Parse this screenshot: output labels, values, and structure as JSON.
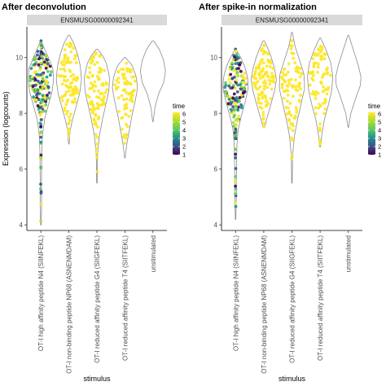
{
  "chart_data": [
    {
      "type": "violin",
      "title": "After deconvolution",
      "strip": "ENSMUSG00000092341",
      "xlabel": "stimulus",
      "ylabel": "Expression (logcounts)",
      "ylim": [
        3.8,
        11.1
      ],
      "yticks": [
        4,
        6,
        8,
        10
      ],
      "color_legend": {
        "title": "time",
        "range": [
          1,
          6.2
        ],
        "ticks": [
          1,
          2,
          3,
          4,
          5,
          6
        ]
      },
      "categories": [
        {
          "label": "OT-I high affinity peptide N4 (SIINFEKL)",
          "range": [
            4.0,
            10.6
          ],
          "profile": [
            [
              4.0,
              0.02
            ],
            [
              4.6,
              0.06
            ],
            [
              5.5,
              0.05
            ],
            [
              6.5,
              0.07
            ],
            [
              7.2,
              0.12
            ],
            [
              7.8,
              0.3
            ],
            [
              8.3,
              0.6
            ],
            [
              8.8,
              0.9
            ],
            [
              9.2,
              1.0
            ],
            [
              9.6,
              0.95
            ],
            [
              10.0,
              0.6
            ],
            [
              10.3,
              0.3
            ],
            [
              10.6,
              0.02
            ]
          ],
          "colored_fraction": 0.75,
          "n_points": 180
        },
        {
          "label": "OT-I non-binding peptide NP68 (ASNENMDAM)",
          "range": [
            6.9,
            10.8
          ],
          "profile": [
            [
              6.9,
              0.02
            ],
            [
              7.4,
              0.1
            ],
            [
              7.8,
              0.3
            ],
            [
              8.2,
              0.55
            ],
            [
              8.7,
              0.85
            ],
            [
              9.2,
              1.0
            ],
            [
              9.7,
              0.9
            ],
            [
              10.1,
              0.7
            ],
            [
              10.5,
              0.4
            ],
            [
              10.8,
              0.05
            ]
          ],
          "colored_fraction": 0.0,
          "n_points": 100
        },
        {
          "label": "OT-I reduced affinity peptide G4 (SIIGFEKL)",
          "range": [
            5.5,
            10.3
          ],
          "profile": [
            [
              5.5,
              0.02
            ],
            [
              6.5,
              0.05
            ],
            [
              7.2,
              0.2
            ],
            [
              7.8,
              0.45
            ],
            [
              8.3,
              0.7
            ],
            [
              8.8,
              0.95
            ],
            [
              9.3,
              1.0
            ],
            [
              9.8,
              0.75
            ],
            [
              10.1,
              0.4
            ],
            [
              10.3,
              0.05
            ]
          ],
          "colored_fraction": 0.0,
          "n_points": 90
        },
        {
          "label": "OT-I reduced affinity peptide T4 (SIITFEKL)",
          "range": [
            6.4,
            10.0
          ],
          "profile": [
            [
              6.4,
              0.02
            ],
            [
              6.9,
              0.15
            ],
            [
              7.4,
              0.35
            ],
            [
              7.9,
              0.55
            ],
            [
              8.4,
              0.8
            ],
            [
              8.9,
              1.0
            ],
            [
              9.3,
              0.9
            ],
            [
              9.7,
              0.6
            ],
            [
              10.0,
              0.05
            ]
          ],
          "colored_fraction": 0.0,
          "n_points": 75
        },
        {
          "label": "unstimulated",
          "range": [
            7.7,
            10.6
          ],
          "profile": [
            [
              7.7,
              0.02
            ],
            [
              8.2,
              0.15
            ],
            [
              8.7,
              0.45
            ],
            [
              9.1,
              0.85
            ],
            [
              9.5,
              1.0
            ],
            [
              9.9,
              0.85
            ],
            [
              10.3,
              0.5
            ],
            [
              10.6,
              0.05
            ]
          ],
          "colored_fraction": 0.0,
          "n_points": 0
        }
      ]
    },
    {
      "type": "violin",
      "title": "After spike-in normalization",
      "strip": "ENSMUSG00000092341",
      "xlabel": "stimulus",
      "ylabel": "",
      "ylim": [
        3.8,
        11.1
      ],
      "yticks": [
        4,
        6,
        8,
        10
      ],
      "color_legend": {
        "title": "time",
        "range": [
          1,
          6.2
        ],
        "ticks": [
          1,
          2,
          3,
          4,
          5,
          6
        ]
      },
      "categories": [
        {
          "label": "OT-I high affinity peptide N4 (SIINFEKL)",
          "range": [
            4.2,
            10.3
          ],
          "profile": [
            [
              4.2,
              0.02
            ],
            [
              5.0,
              0.06
            ],
            [
              6.0,
              0.07
            ],
            [
              6.8,
              0.1
            ],
            [
              7.4,
              0.2
            ],
            [
              7.9,
              0.45
            ],
            [
              8.4,
              0.75
            ],
            [
              8.9,
              1.0
            ],
            [
              9.3,
              0.95
            ],
            [
              9.7,
              0.7
            ],
            [
              10.0,
              0.4
            ],
            [
              10.3,
              0.03
            ]
          ],
          "colored_fraction": 0.75,
          "n_points": 170
        },
        {
          "label": "OT-I non-binding peptide NP68 (ASNENMDAM)",
          "range": [
            7.5,
            10.6
          ],
          "profile": [
            [
              7.5,
              0.05
            ],
            [
              7.9,
              0.3
            ],
            [
              8.3,
              0.55
            ],
            [
              8.8,
              0.85
            ],
            [
              9.2,
              1.0
            ],
            [
              9.6,
              0.85
            ],
            [
              10.0,
              0.6
            ],
            [
              10.3,
              0.35
            ],
            [
              10.6,
              0.05
            ]
          ],
          "colored_fraction": 0.0,
          "n_points": 100
        },
        {
          "label": "OT-I reduced affinity peptide G4 (SIIGFEKL)",
          "range": [
            5.5,
            10.9
          ],
          "profile": [
            [
              5.5,
              0.02
            ],
            [
              6.5,
              0.05
            ],
            [
              7.2,
              0.2
            ],
            [
              7.8,
              0.45
            ],
            [
              8.4,
              0.75
            ],
            [
              8.9,
              1.0
            ],
            [
              9.4,
              0.95
            ],
            [
              9.9,
              0.6
            ],
            [
              10.4,
              0.25
            ],
            [
              10.9,
              0.03
            ]
          ],
          "colored_fraction": 0.0,
          "n_points": 90
        },
        {
          "label": "OT-I reduced affinity peptide T4 (SIITFEKL)",
          "range": [
            6.8,
            10.7
          ],
          "profile": [
            [
              6.8,
              0.03
            ],
            [
              7.3,
              0.15
            ],
            [
              7.8,
              0.35
            ],
            [
              8.3,
              0.65
            ],
            [
              8.8,
              0.9
            ],
            [
              9.3,
              1.0
            ],
            [
              9.8,
              0.85
            ],
            [
              10.3,
              0.45
            ],
            [
              10.7,
              0.03
            ]
          ],
          "colored_fraction": 0.0,
          "n_points": 80
        },
        {
          "label": "unstimulated",
          "range": [
            7.5,
            10.8
          ],
          "profile": [
            [
              7.5,
              0.02
            ],
            [
              8.0,
              0.2
            ],
            [
              8.5,
              0.55
            ],
            [
              9.0,
              0.95
            ],
            [
              9.3,
              1.0
            ],
            [
              9.7,
              0.8
            ],
            [
              10.2,
              0.45
            ],
            [
              10.8,
              0.03
            ]
          ],
          "colored_fraction": 0.0,
          "n_points": 0
        }
      ]
    }
  ]
}
